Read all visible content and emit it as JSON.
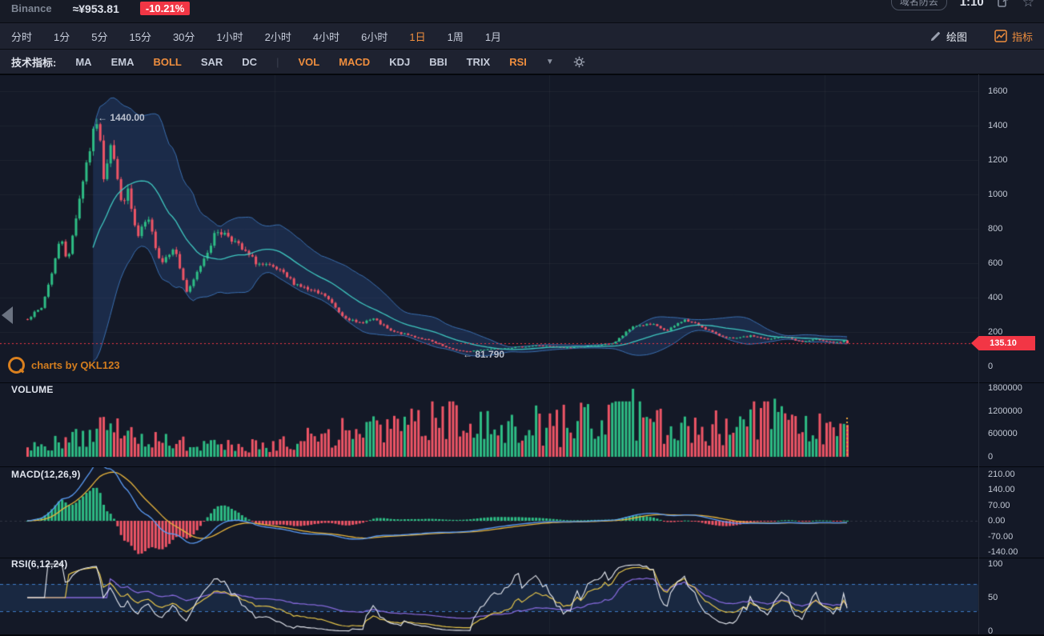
{
  "topbar": {
    "exchange": "Binance",
    "approx_price": "≈¥953.81",
    "change": "-10.21%",
    "pill_label": "域名防丢",
    "ratio": "1:10"
  },
  "timeframe_bar": {
    "tabs": [
      {
        "label": "分时",
        "active": false
      },
      {
        "label": "1分",
        "active": false
      },
      {
        "label": "5分",
        "active": false
      },
      {
        "label": "15分",
        "active": false
      },
      {
        "label": "30分",
        "active": false
      },
      {
        "label": "1小时",
        "active": false
      },
      {
        "label": "2小时",
        "active": false
      },
      {
        "label": "4小时",
        "active": false
      },
      {
        "label": "6小时",
        "active": false
      },
      {
        "label": "1日",
        "active": true
      },
      {
        "label": "1周",
        "active": false
      },
      {
        "label": "1月",
        "active": false
      }
    ],
    "draw_label": "绘图",
    "indicator_label": "指标"
  },
  "indicator_bar": {
    "title": "技术指标:",
    "overlays": [
      {
        "label": "MA",
        "active": false
      },
      {
        "label": "EMA",
        "active": false
      },
      {
        "label": "BOLL",
        "active": true
      },
      {
        "label": "SAR",
        "active": false
      },
      {
        "label": "DC",
        "active": false
      }
    ],
    "oscillators": [
      {
        "label": "VOL",
        "active": true
      },
      {
        "label": "MACD",
        "active": true
      },
      {
        "label": "KDJ",
        "active": false
      },
      {
        "label": "BBI",
        "active": false
      },
      {
        "label": "TRIX",
        "active": false
      },
      {
        "label": "RSI",
        "active": true
      }
    ]
  },
  "panels": {
    "volume_label": "VOLUME",
    "macd_label": "MACD(12,26,9)",
    "rsi_label": "RSI(6,12,24)"
  },
  "watermark": {
    "text": "charts by QKL123"
  },
  "annotations": {
    "high_label": "← 1440.00",
    "low_label": "← 81.790",
    "last_price_label": "135.10"
  },
  "chart_data": {
    "type": "candlestick",
    "exchange": "Binance",
    "interval": "1日",
    "candle_count": 238,
    "high": 1440.0,
    "low": 81.79,
    "last_price": 135.1,
    "change_pct": -10.21,
    "indicators": {
      "boll": [
        20,
        2
      ],
      "macd": [
        12,
        26,
        9
      ],
      "rsi": [
        6,
        12,
        24
      ]
    },
    "price_ticks": [
      {
        "label": "1600",
        "v": 1600
      },
      {
        "label": "1400",
        "v": 1400
      },
      {
        "label": "1200",
        "v": 1200
      },
      {
        "label": "1000",
        "v": 1000
      },
      {
        "label": "800",
        "v": 800
      },
      {
        "label": "600",
        "v": 600
      },
      {
        "label": "400",
        "v": 400
      },
      {
        "label": "200",
        "v": 200
      },
      {
        "label": "0",
        "v": 0
      }
    ],
    "volume_ticks": [
      {
        "label": "1800000",
        "v": 1800000
      },
      {
        "label": "1200000",
        "v": 1200000
      },
      {
        "label": "600000",
        "v": 600000
      },
      {
        "label": "0",
        "v": 0
      }
    ],
    "macd_ticks": [
      {
        "label": "210.00",
        "v": 210
      },
      {
        "label": "140.00",
        "v": 140
      },
      {
        "label": "70.00",
        "v": 70
      },
      {
        "label": "0.00",
        "v": 0
      },
      {
        "label": "-70.00",
        "v": -70
      },
      {
        "label": "-140.00",
        "v": -140
      }
    ],
    "rsi_ticks": [
      {
        "label": "100",
        "v": 100
      },
      {
        "label": "50",
        "v": 50
      },
      {
        "label": "0",
        "v": 0
      }
    ],
    "rsi_bands": [
      70,
      30
    ],
    "price_anchors": [
      [
        0.0,
        280
      ],
      [
        0.017,
        340
      ],
      [
        0.028,
        520
      ],
      [
        0.041,
        760
      ],
      [
        0.049,
        600
      ],
      [
        0.06,
        900
      ],
      [
        0.07,
        1150
      ],
      [
        0.085,
        1440
      ],
      [
        0.093,
        1100
      ],
      [
        0.102,
        1330
      ],
      [
        0.114,
        950
      ],
      [
        0.122,
        1020
      ],
      [
        0.134,
        740
      ],
      [
        0.146,
        860
      ],
      [
        0.163,
        600
      ],
      [
        0.178,
        700
      ],
      [
        0.195,
        420
      ],
      [
        0.212,
        600
      ],
      [
        0.231,
        790
      ],
      [
        0.246,
        760
      ],
      [
        0.261,
        680
      ],
      [
        0.28,
        600
      ],
      [
        0.305,
        560
      ],
      [
        0.324,
        490
      ],
      [
        0.344,
        440
      ],
      [
        0.363,
        410
      ],
      [
        0.383,
        300
      ],
      [
        0.402,
        250
      ],
      [
        0.422,
        275
      ],
      [
        0.443,
        205
      ],
      [
        0.466,
        180
      ],
      [
        0.49,
        150
      ],
      [
        0.513,
        105
      ],
      [
        0.534,
        85
      ],
      [
        0.559,
        100
      ],
      [
        0.593,
        110
      ],
      [
        0.624,
        122
      ],
      [
        0.656,
        108
      ],
      [
        0.69,
        120
      ],
      [
        0.715,
        135
      ],
      [
        0.739,
        235
      ],
      [
        0.761,
        245
      ],
      [
        0.78,
        205
      ],
      [
        0.8,
        272
      ],
      [
        0.819,
        240
      ],
      [
        0.84,
        185
      ],
      [
        0.861,
        160
      ],
      [
        0.884,
        178
      ],
      [
        0.903,
        155
      ],
      [
        0.923,
        175
      ],
      [
        0.944,
        142
      ],
      [
        0.964,
        158
      ],
      [
        0.983,
        140
      ],
      [
        1.0,
        135.1
      ]
    ],
    "volume_envelope": [
      [
        0.0,
        0.12
      ],
      [
        0.05,
        0.18
      ],
      [
        0.09,
        0.38
      ],
      [
        0.12,
        0.3
      ],
      [
        0.2,
        0.18
      ],
      [
        0.3,
        0.22
      ],
      [
        0.4,
        0.45
      ],
      [
        0.45,
        0.5
      ],
      [
        0.5,
        0.62
      ],
      [
        0.55,
        0.5
      ],
      [
        0.6,
        0.6
      ],
      [
        0.65,
        0.55
      ],
      [
        0.7,
        0.65
      ],
      [
        0.73,
        1.0
      ],
      [
        0.78,
        0.5
      ],
      [
        0.82,
        0.45
      ],
      [
        0.87,
        0.5
      ],
      [
        0.91,
        0.95
      ],
      [
        0.94,
        0.5
      ],
      [
        0.97,
        0.45
      ],
      [
        1.0,
        0.55
      ]
    ],
    "colors": {
      "up": "#2ebd85",
      "down": "#ee5566",
      "boll_fill": "rgba(45,90,160,0.28)",
      "boll_edge": "#3a6fb0",
      "boll_mid": "#3fc8c0",
      "macd_dif": "#5b9cf6",
      "macd_dea": "#e7b43c",
      "rsi1": "#e8ebf2",
      "rsi2": "#e7c64a",
      "rsi3": "#8468d8",
      "last_price_line": "#f23645",
      "grid": "rgba(255,255,255,0.045)",
      "band_fill": "rgba(52,110,190,0.18)",
      "band_line": "#3f7cc9",
      "marker_orange": "#e8a13c",
      "accent_orange": "#ef8e3e"
    }
  }
}
